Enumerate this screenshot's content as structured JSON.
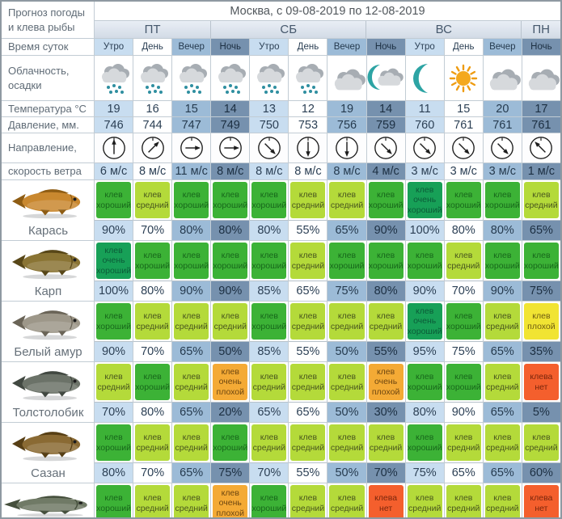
{
  "title": "Москва, с 09-08-2019 по 12-08-2019",
  "corner": {
    "line1": "Прогноз погоды",
    "line2": "и клева рыбы"
  },
  "days": [
    {
      "label": "ПТ",
      "span": 3
    },
    {
      "label": "СБ",
      "span": 4
    },
    {
      "label": "ВС",
      "span": 4
    },
    {
      "label": "ПН",
      "span": 1
    }
  ],
  "row_labels": {
    "time": "Время суток",
    "clouds1": "Облачность,",
    "clouds2": "осадки",
    "temp": "Температура °C",
    "pressure": "Давление, мм.",
    "wind_dir": "Направление,",
    "wind_speed": "скорость ветра"
  },
  "times": [
    "Утро",
    "День",
    "Вечер",
    "Ночь",
    "Утро",
    "День",
    "Вечер",
    "Ночь",
    "Утро",
    "День",
    "Вечер",
    "Ночь"
  ],
  "time_kinds": [
    "morning",
    "day",
    "evening",
    "night",
    "morning",
    "day",
    "evening",
    "night",
    "morning",
    "day",
    "evening",
    "night"
  ],
  "weather": [
    "rain",
    "rain",
    "rain",
    "rain",
    "rain",
    "rain",
    "cloud",
    "moon-cloud",
    "moon",
    "sun",
    "cloud",
    "cloud"
  ],
  "temperature": [
    "19",
    "16",
    "15",
    "14",
    "13",
    "12",
    "19",
    "14",
    "11",
    "15",
    "20",
    "17"
  ],
  "pressure": [
    "746",
    "744",
    "747",
    "749",
    "750",
    "753",
    "756",
    "759",
    "760",
    "761",
    "761",
    "761"
  ],
  "wind": {
    "directions_deg": [
      0,
      45,
      90,
      90,
      135,
      180,
      180,
      135,
      135,
      135,
      135,
      315
    ],
    "speeds": [
      "6 м/с",
      "8 м/с",
      "11 м/с",
      "8 м/с",
      "8 м/с",
      "8 м/с",
      "8 м/с",
      "4 м/с",
      "3 м/с",
      "3 м/с",
      "3 м/с",
      "1 м/с"
    ]
  },
  "time_colors": {
    "morning": {
      "bg": "#c8ddf0",
      "fg": "#2c4055"
    },
    "day": {
      "bg": "#ffffff",
      "fg": "#2c4055"
    },
    "evening": {
      "bg": "#9cbbd7",
      "fg": "#253a4e"
    },
    "night": {
      "bg": "#7691ae",
      "fg": "#1c2f42"
    }
  },
  "rating_styles": {
    "good": {
      "label": "клев хороший",
      "bg": "#3cb236",
      "fg": "#17671b"
    },
    "avg": {
      "label": "клев средний",
      "bg": "#b4da3a",
      "fg": "#49561e"
    },
    "vgood": {
      "label": "клев очень хороший",
      "bg": "#17a057",
      "fg": "#0b5b38"
    },
    "bad": {
      "label": "клев плохой",
      "bg": "#f1e433",
      "fg": "#6e5c12"
    },
    "vbad": {
      "label": "клев очень плохой",
      "bg": "#f4aa35",
      "fg": "#6e4710"
    },
    "none": {
      "label": "клева нет",
      "bg": "#f45f2d",
      "fg": "#79260c"
    }
  },
  "fish": [
    {
      "name": "Карась",
      "color": "#c9882f",
      "fin": "#8f5d14",
      "long": false,
      "ratings": [
        "good",
        "avg",
        "good",
        "good",
        "good",
        "avg",
        "avg",
        "good",
        "vgood",
        "good",
        "good",
        "avg"
      ],
      "percents": [
        "90%",
        "70%",
        "80%",
        "80%",
        "80%",
        "55%",
        "65%",
        "90%",
        "100%",
        "80%",
        "80%",
        "65%"
      ]
    },
    {
      "name": "Карп",
      "color": "#8a7434",
      "fin": "#584718",
      "long": false,
      "ratings": [
        "vgood",
        "good",
        "good",
        "good",
        "good",
        "avg",
        "good",
        "good",
        "good",
        "avg",
        "good",
        "good"
      ],
      "percents": [
        "100%",
        "80%",
        "90%",
        "90%",
        "85%",
        "65%",
        "75%",
        "80%",
        "90%",
        "70%",
        "90%",
        "75%"
      ]
    },
    {
      "name": "Белый амур",
      "color": "#9d9789",
      "fin": "#6a6457",
      "long": false,
      "ratings": [
        "good",
        "avg",
        "avg",
        "avg",
        "good",
        "avg",
        "avg",
        "avg",
        "vgood",
        "good",
        "avg",
        "bad"
      ],
      "percents": [
        "90%",
        "70%",
        "65%",
        "50%",
        "85%",
        "55%",
        "50%",
        "55%",
        "95%",
        "75%",
        "65%",
        "35%"
      ]
    },
    {
      "name": "Толстолобик",
      "color": "#6b7268",
      "fin": "#414841",
      "long": false,
      "ratings": [
        "avg",
        "good",
        "avg",
        "vbad",
        "avg",
        "avg",
        "avg",
        "vbad",
        "good",
        "good",
        "avg",
        "none"
      ],
      "percents": [
        "70%",
        "80%",
        "65%",
        "20%",
        "65%",
        "65%",
        "50%",
        "30%",
        "80%",
        "90%",
        "65%",
        "5%"
      ]
    },
    {
      "name": "Сазан",
      "color": "#8a6a33",
      "fin": "#573f15",
      "long": false,
      "ratings": [
        "good",
        "avg",
        "avg",
        "good",
        "avg",
        "avg",
        "avg",
        "avg",
        "good",
        "avg",
        "avg",
        "avg"
      ],
      "percents": [
        "80%",
        "70%",
        "65%",
        "75%",
        "70%",
        "55%",
        "50%",
        "70%",
        "75%",
        "65%",
        "65%",
        "60%"
      ]
    },
    {
      "name": "",
      "color": "#707a66",
      "fin": "#454f3c",
      "long": true,
      "ratings": [
        "good",
        "avg",
        "avg",
        "vbad",
        "good",
        "avg",
        "avg",
        "none",
        "avg",
        "avg",
        "avg",
        "none"
      ],
      "percents": [
        "",
        "",
        "",
        "",
        "",
        "",
        "",
        "",
        "",
        "",
        "",
        ""
      ]
    }
  ],
  "colors": {
    "moon": "#2da4a4",
    "sun": "#f4a81e",
    "sun_ray": "#ee9c12",
    "cloud_front": "#d6d9dc",
    "cloud_back": "#a7adb3",
    "drop": "#2f8fa0",
    "compass": "#1d1d1d"
  }
}
